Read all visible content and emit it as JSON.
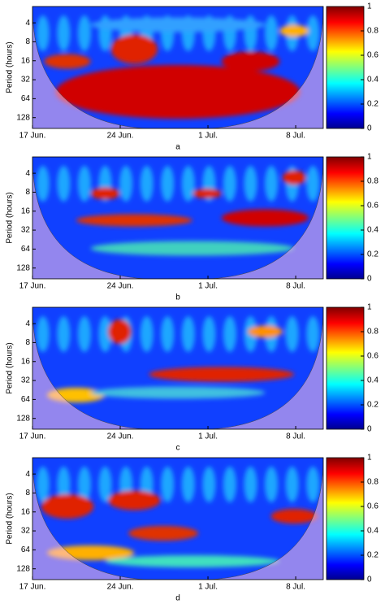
{
  "chart_data": [
    {
      "type": "heatmap",
      "panel_label": "a",
      "ylabel": "Period (hours)",
      "log_y": true,
      "ylim": [
        2.2,
        190
      ],
      "yticks": [
        4,
        8,
        16,
        32,
        64,
        128
      ],
      "xlim": [
        0,
        23.2
      ],
      "xticks": [
        {
          "value": 0,
          "label": "17 Jun."
        },
        {
          "value": 7,
          "label": "24 Jun."
        },
        {
          "value": 14,
          "label": "1 Jul."
        },
        {
          "value": 21,
          "label": "8 Jul."
        }
      ],
      "clim": [
        0,
        1
      ],
      "cticks": [
        0,
        0.2,
        0.4,
        0.6,
        0.8,
        1
      ]
    },
    {
      "type": "heatmap",
      "panel_label": "b",
      "ylabel": "Period (hours)",
      "log_y": true,
      "ylim": [
        2.2,
        190
      ],
      "yticks": [
        4,
        8,
        16,
        32,
        64,
        128
      ],
      "xlim": [
        0,
        23.2
      ],
      "xticks": [
        {
          "value": 0,
          "label": "17 Jun."
        },
        {
          "value": 7,
          "label": "24 Jun."
        },
        {
          "value": 14,
          "label": "1 Jul."
        },
        {
          "value": 21,
          "label": "8 Jul."
        }
      ],
      "clim": [
        0,
        1
      ],
      "cticks": [
        0,
        0.2,
        0.4,
        0.6,
        0.8,
        1
      ]
    },
    {
      "type": "heatmap",
      "panel_label": "c",
      "ylabel": "Period (hours)",
      "log_y": true,
      "ylim": [
        2.2,
        190
      ],
      "yticks": [
        4,
        8,
        16,
        32,
        64,
        128
      ],
      "xlim": [
        0,
        23.2
      ],
      "xticks": [
        {
          "value": 0,
          "label": "17 Jun."
        },
        {
          "value": 7,
          "label": "24 Jun."
        },
        {
          "value": 14,
          "label": "1 Jul."
        },
        {
          "value": 21,
          "label": "8 Jul."
        }
      ],
      "clim": [
        0,
        1
      ],
      "cticks": [
        0,
        0.2,
        0.4,
        0.6,
        0.8,
        1
      ]
    },
    {
      "type": "heatmap",
      "panel_label": "d",
      "ylabel": "Period (hours)",
      "log_y": true,
      "ylim": [
        2.2,
        190
      ],
      "yticks": [
        4,
        8,
        16,
        32,
        64,
        128
      ],
      "xlim": [
        0,
        23.2
      ],
      "xticks": [
        {
          "value": 0,
          "label": "17 Jun."
        },
        {
          "value": 7,
          "label": "24 Jun."
        },
        {
          "value": 14,
          "label": "1 Jul."
        },
        {
          "value": 21,
          "label": "8 Jul."
        }
      ],
      "clim": [
        0,
        1
      ],
      "cticks": [
        0,
        0.2,
        0.4,
        0.6,
        0.8,
        1
      ]
    }
  ]
}
